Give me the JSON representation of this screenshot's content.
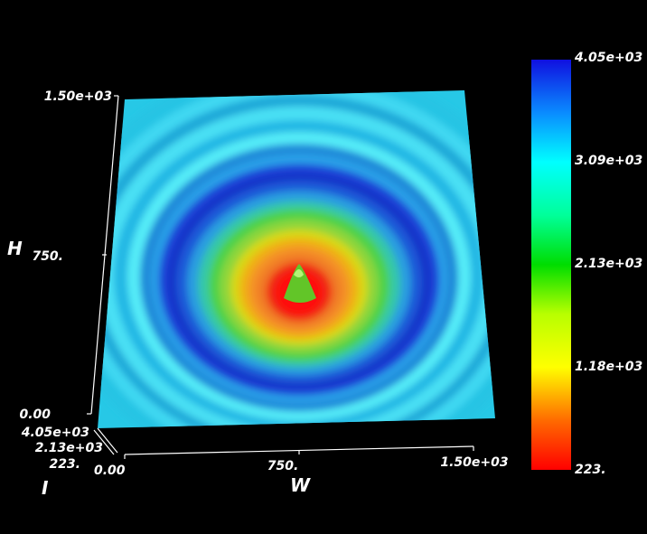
{
  "chart_data": {
    "type": "heatmap",
    "description_kind": "3d-surface",
    "axes": {
      "x": {
        "label": "W",
        "range": [
          0,
          1500
        ],
        "ticks": [
          "0.00",
          "750.",
          "1.50e+03"
        ]
      },
      "y": {
        "label": "H",
        "range": [
          0,
          1500
        ],
        "ticks": [
          "0.00",
          "750.",
          "1.50e+03"
        ]
      },
      "z": {
        "label": "I",
        "range": [
          223,
          4050
        ],
        "ticks": [
          "223.",
          "2.13e+03",
          "4.05e+03"
        ]
      }
    },
    "colorbar": {
      "range": [
        223,
        4050
      ],
      "ticks": [
        "223.",
        "1.18e+03",
        "2.13e+03",
        "3.09e+03",
        "4.05e+03"
      ],
      "colormap": "rainbow",
      "position": "right"
    },
    "surface": {
      "pattern": "concentric-rings",
      "center": [
        750,
        750
      ],
      "center_value": 223,
      "background_value": 3300,
      "peak_ring_value": 4050
    },
    "colors": {
      "background": "#000000",
      "low": "#ff0000",
      "high": "#1010ff"
    }
  }
}
